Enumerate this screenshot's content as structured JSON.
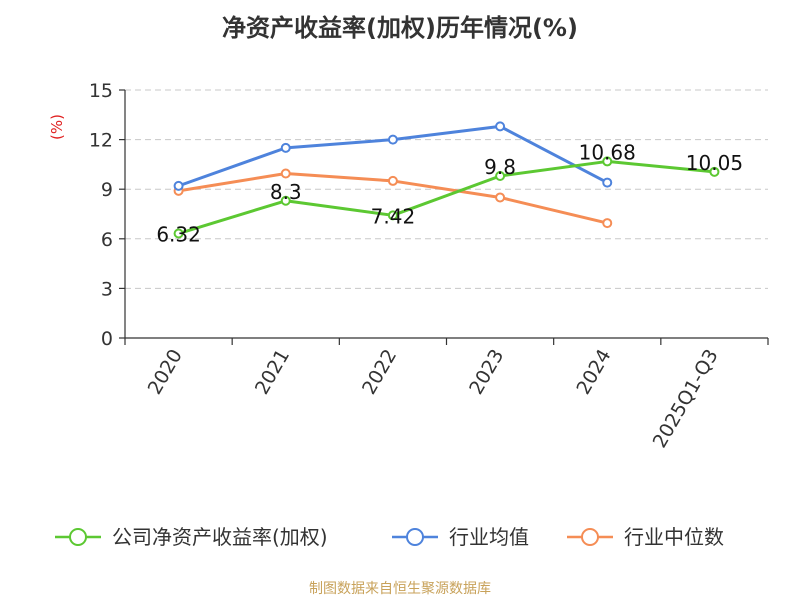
{
  "chart_data": {
    "type": "line",
    "title": "净资产收益率(加权)历年情况(%)",
    "ylabel": "(%)",
    "xlabel": "",
    "ylim": [
      0,
      15
    ],
    "yticks": [
      0,
      3,
      6,
      9,
      12,
      15
    ],
    "grid": true,
    "legend_position": "bottom",
    "categories": [
      "2020",
      "2021",
      "2022",
      "2023",
      "2024",
      "2025Q1-Q3"
    ],
    "series": [
      {
        "name": "公司净资产收益率(加权)",
        "color": "#5cc832",
        "values": [
          6.32,
          8.3,
          7.42,
          9.8,
          10.68,
          10.05
        ],
        "labels": [
          "6.32",
          "8.3",
          "7.42",
          "9.8",
          "10.68",
          "10.05"
        ]
      },
      {
        "name": "行业均值",
        "color": "#4e83dc",
        "values": [
          9.2,
          11.5,
          12.0,
          12.8,
          9.4,
          null
        ]
      },
      {
        "name": "行业中位数",
        "color": "#f58d55",
        "values": [
          8.9,
          9.95,
          9.5,
          8.5,
          6.95,
          null
        ]
      }
    ]
  },
  "source": "制图数据来自恒生聚源数据库"
}
